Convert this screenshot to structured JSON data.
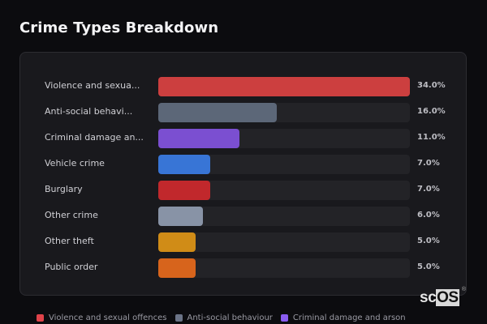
{
  "title": "Crime Types Breakdown",
  "rows": [
    {
      "label": "Violence and sexua...",
      "value": "34.0%",
      "pct": 34.0,
      "color": "#cc3f3f"
    },
    {
      "label": "Anti-social behavi...",
      "value": "16.0%",
      "pct": 16.0,
      "color": "#5c6778"
    },
    {
      "label": "Criminal damage an...",
      "value": "11.0%",
      "pct": 11.0,
      "color": "#7b4fd1"
    },
    {
      "label": "Vehicle crime",
      "value": "7.0%",
      "pct": 7.0,
      "color": "#3875d6"
    },
    {
      "label": "Burglary",
      "value": "7.0%",
      "pct": 7.0,
      "color": "#c1282c"
    },
    {
      "label": "Other crime",
      "value": "6.0%",
      "pct": 6.0,
      "color": "#8893a6"
    },
    {
      "label": "Other theft",
      "value": "5.0%",
      "pct": 5.0,
      "color": "#d08c17"
    },
    {
      "label": "Public order",
      "value": "5.0%",
      "pct": 5.0,
      "color": "#d7641c"
    }
  ],
  "legend": [
    {
      "label": "Violence and sexual offences",
      "color": "#e0434a"
    },
    {
      "label": "Anti-social behaviour",
      "color": "#6b7487"
    },
    {
      "label": "Criminal damage and arson",
      "color": "#8a5cf0"
    }
  ],
  "logo": {
    "prefix": "sc",
    "suffix": "OS",
    "mark": "®"
  },
  "chart_data": {
    "type": "bar",
    "orientation": "horizontal",
    "title": "Crime Types Breakdown",
    "categories": [
      "Violence and sexual offences",
      "Anti-social behaviour",
      "Criminal damage and arson",
      "Vehicle crime",
      "Burglary",
      "Other crime",
      "Other theft",
      "Public order"
    ],
    "values": [
      34.0,
      16.0,
      11.0,
      7.0,
      7.0,
      6.0,
      5.0,
      5.0
    ],
    "unit": "%",
    "xlabel": "",
    "ylabel": "",
    "legend_position": "bottom",
    "grid": false
  }
}
